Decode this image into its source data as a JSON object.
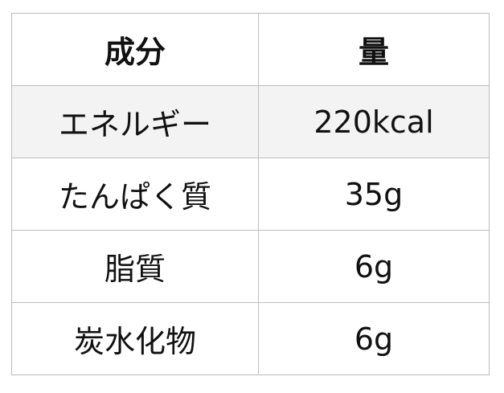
{
  "table": {
    "headers": [
      "成分",
      "量"
    ],
    "rows": [
      [
        "エネルギー",
        "220kcal"
      ],
      [
        "たんぱく質",
        "35g"
      ],
      [
        "脂質",
        "6g"
      ],
      [
        "炭水化物",
        "6g"
      ]
    ]
  }
}
